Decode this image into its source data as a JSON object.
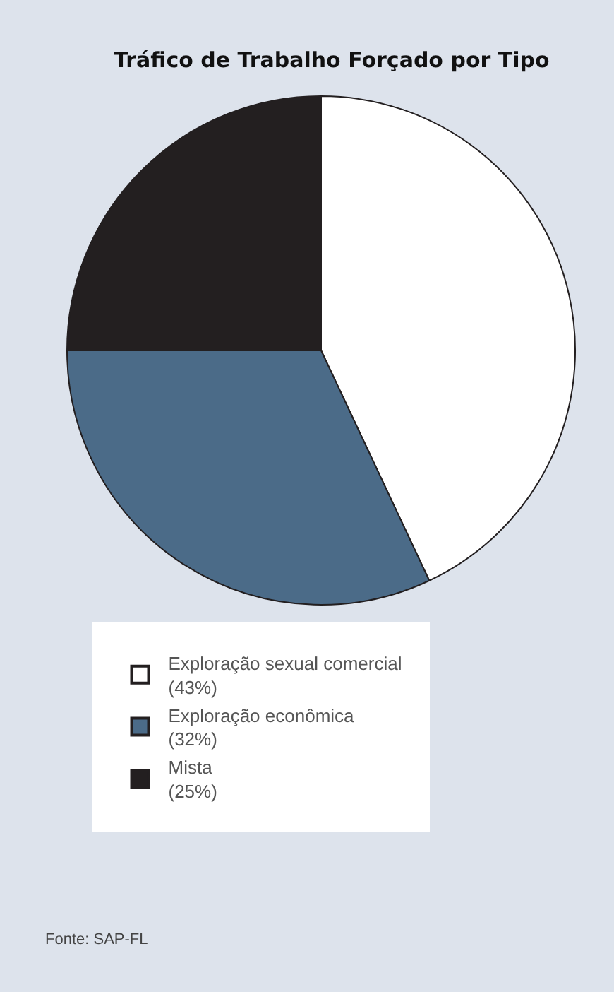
{
  "chart_data": {
    "type": "pie",
    "title": "Tráfico de Trabalho Forçado por Tipo",
    "categories": [
      "Exploração sexual comercial\n(43%)",
      "Exploração econômica\n(32%)",
      "Mista\n(25%)"
    ],
    "values": [
      43,
      32,
      25
    ],
    "colors": [
      "#ffffff",
      "#4b6b88",
      "#231f20"
    ],
    "legend": "bottom",
    "annotations": [
      "Fonte: SAP-FL"
    ]
  }
}
